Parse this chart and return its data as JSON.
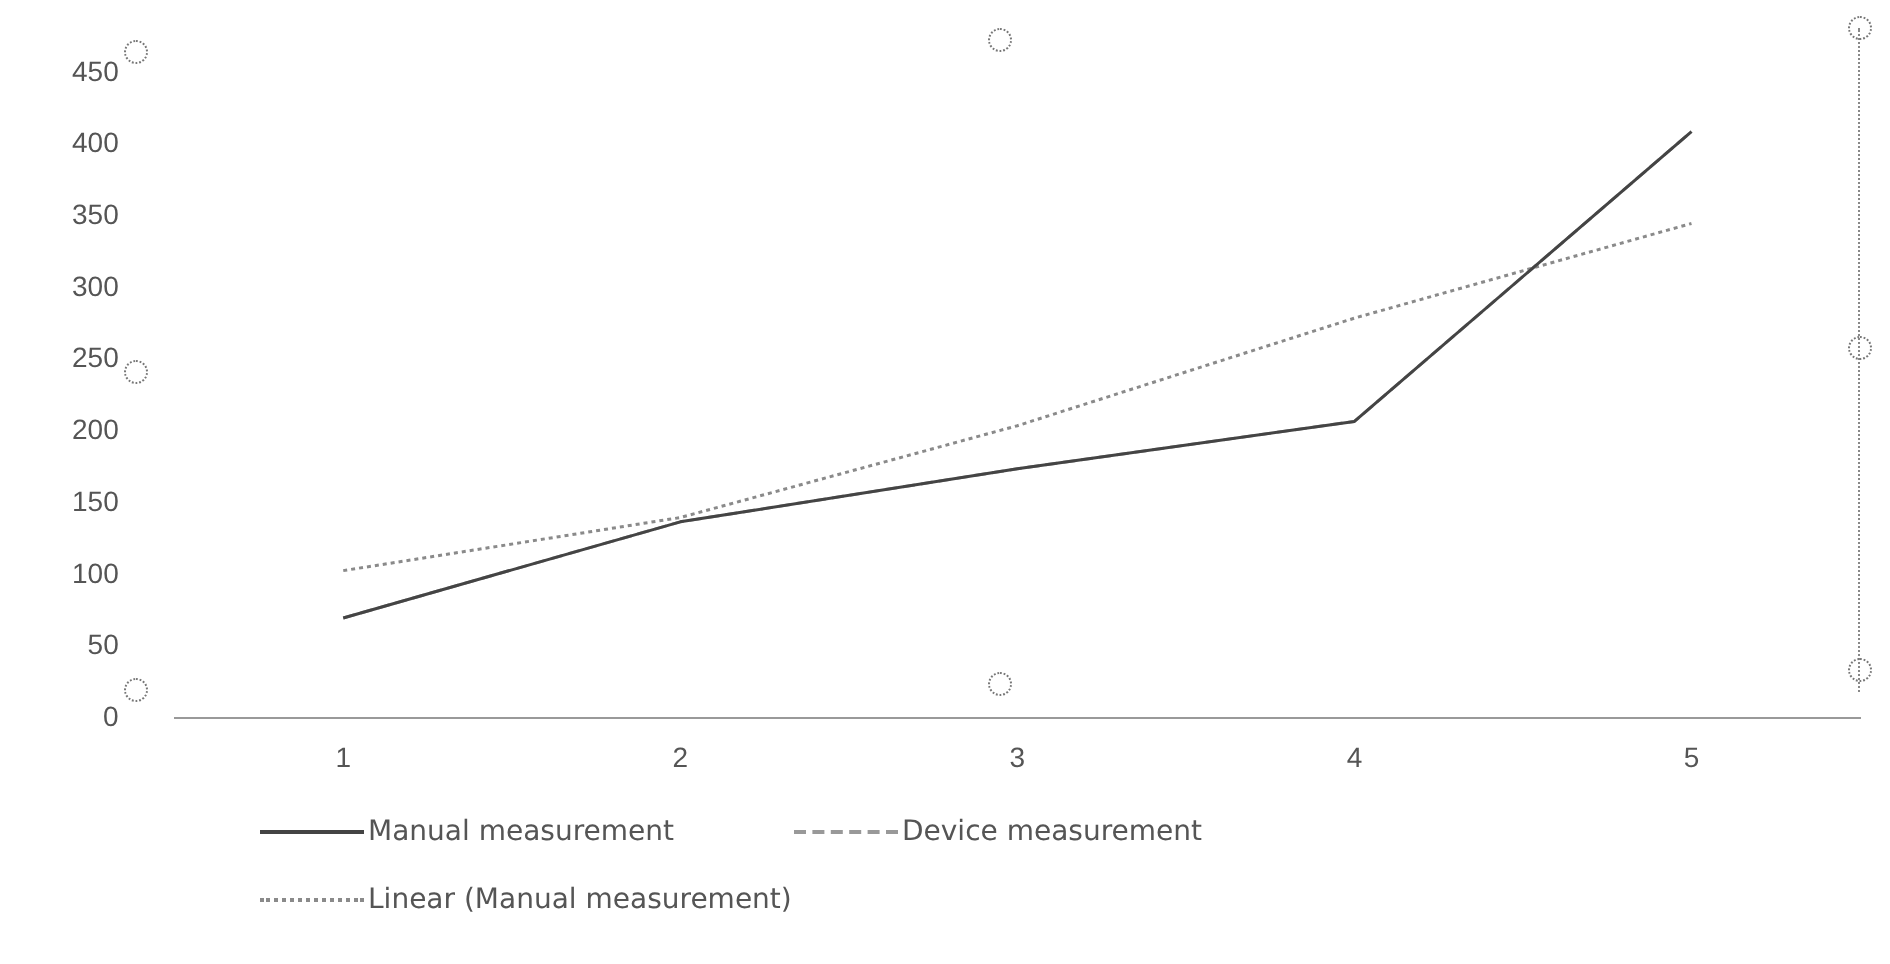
{
  "chart_data": {
    "type": "line",
    "categories": [
      "1",
      "2",
      "3",
      "4",
      "5"
    ],
    "series": [
      {
        "name": "Manual measurement",
        "color": "#444444",
        "values": [
          70,
          137,
          174,
          207,
          409
        ],
        "line_style": "solid"
      },
      {
        "name": "Device measurement",
        "color": "#999999",
        "values": [
          70,
          137,
          174,
          207,
          409
        ],
        "line_style": "dashed"
      },
      {
        "name": "Linear (Manual measurement)",
        "color": "#8a8a8a",
        "values": [
          103,
          140,
          204,
          279,
          345
        ],
        "line_style": "dotted"
      }
    ],
    "ylim": [
      0,
      450
    ],
    "yticks": [
      0,
      50,
      100,
      150,
      200,
      250,
      300,
      350,
      400,
      450
    ],
    "grid": false,
    "legend": "bottom",
    "marker": "none"
  }
}
